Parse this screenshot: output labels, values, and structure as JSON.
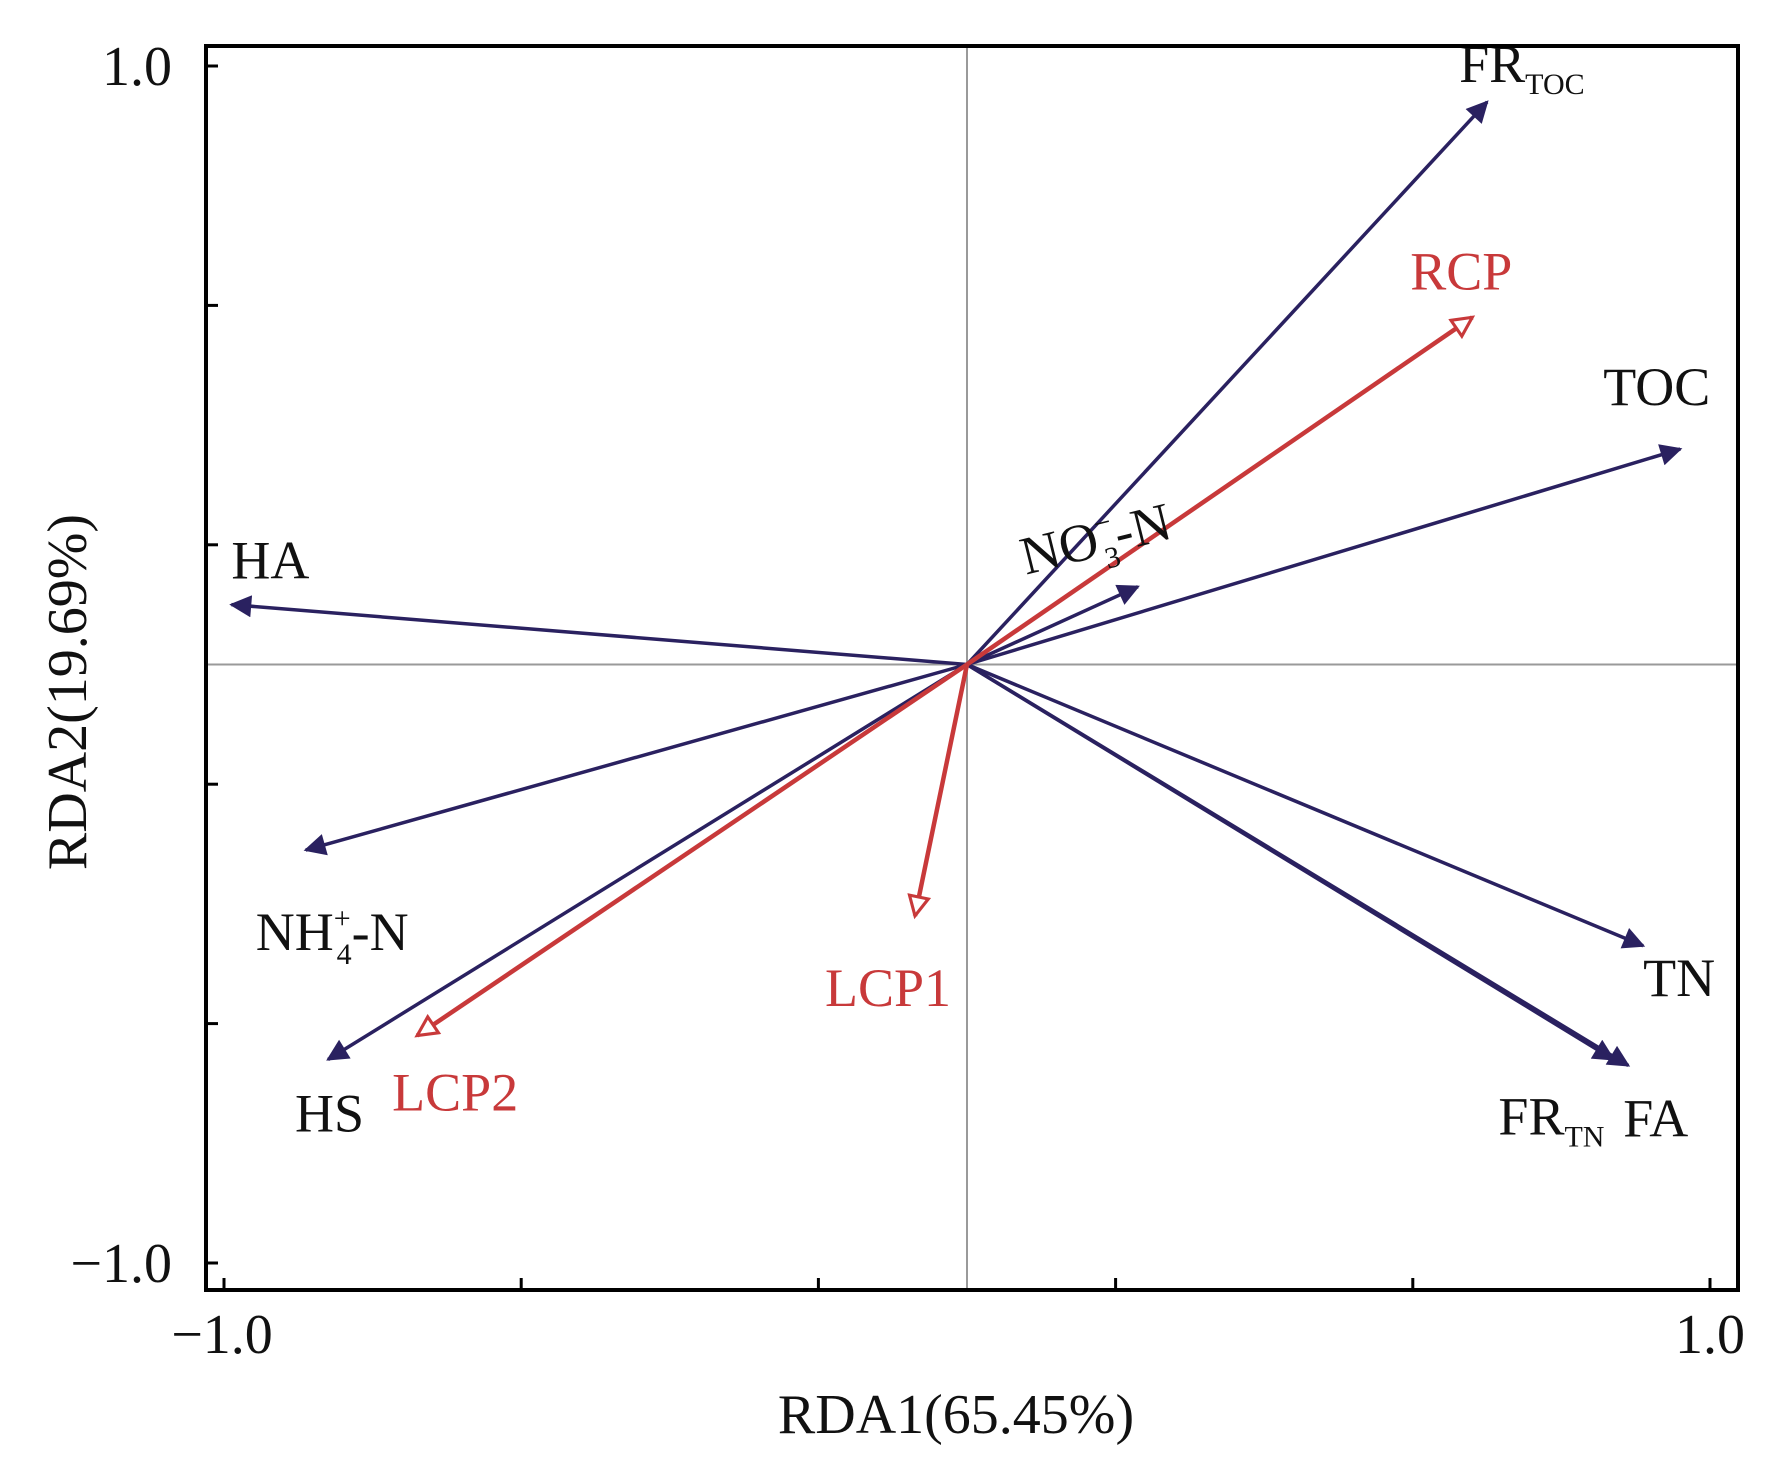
{
  "chart_data": {
    "type": "biplot",
    "xlabel": "RDA1(65.45%)",
    "ylabel": "RDA2(19.69%)",
    "xlim": [
      -1.0,
      1.0
    ],
    "ylim": [
      -1.0,
      1.0
    ],
    "x_tick_labels": [
      "−1.0",
      "1.0"
    ],
    "y_tick_labels": [
      "1.0",
      "−1.0"
    ],
    "colors": {
      "response": "#2a2160",
      "explanatory": "#c8393a",
      "frame": "#000000",
      "crosshair": "#9a9a9a"
    },
    "series": [
      {
        "group": "response",
        "vectors": [
          {
            "name": "FR_TOC",
            "label": {
              "base": "FR",
              "sub": "TOC"
            },
            "x": 0.7,
            "y": 0.94
          },
          {
            "name": "TOC",
            "label": {
              "base": "TOC"
            },
            "x": 0.96,
            "y": 0.36
          },
          {
            "name": "NO3--N",
            "label": {
              "base": "NO",
              "sub": "3",
              "sup": "−",
              "tail": "-N"
            },
            "x": 0.23,
            "y": 0.13
          },
          {
            "name": "HA",
            "label": {
              "base": "HA"
            },
            "x": -0.99,
            "y": 0.1
          },
          {
            "name": "NH4+-N",
            "label": {
              "base": "NH",
              "sub": "4",
              "sup": "+",
              "tail": "-N"
            },
            "x": -0.89,
            "y": -0.31
          },
          {
            "name": "HS",
            "label": {
              "base": "HS"
            },
            "x": -0.86,
            "y": -0.66
          },
          {
            "name": "TN",
            "label": {
              "base": "TN"
            },
            "x": 0.91,
            "y": -0.47
          },
          {
            "name": "FR_TN",
            "label": {
              "base": "FR",
              "sub": "TN"
            },
            "x": 0.87,
            "y": -0.66
          },
          {
            "name": "FA",
            "label": {
              "base": "FA"
            },
            "x": 0.89,
            "y": -0.67
          }
        ]
      },
      {
        "group": "explanatory",
        "vectors": [
          {
            "name": "RCP",
            "label": {
              "base": "RCP"
            },
            "x": 0.68,
            "y": 0.58
          },
          {
            "name": "LCP1",
            "label": {
              "base": "LCP1"
            },
            "x": -0.07,
            "y": -0.42
          },
          {
            "name": "LCP2",
            "label": {
              "base": "LCP2"
            },
            "x": -0.74,
            "y": -0.62
          }
        ]
      }
    ]
  }
}
